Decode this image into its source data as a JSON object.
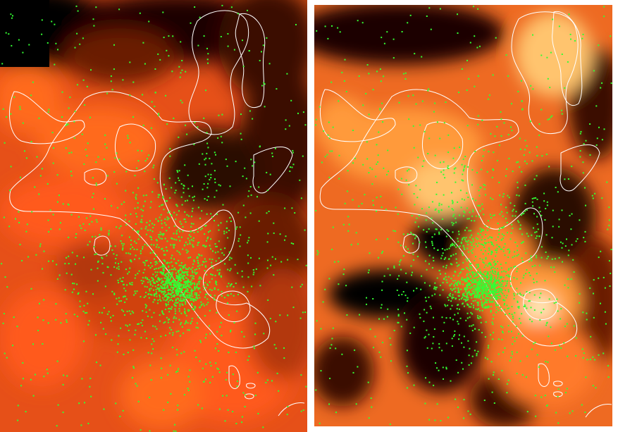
{
  "figure": {
    "panels": [
      {
        "name": "left-map",
        "background": "#e65018",
        "contour_color": "#ffffff",
        "point_color": "#33ff33",
        "colormap": [
          "#000000",
          "#2a0800",
          "#6b1a04",
          "#b3370c",
          "#e65018",
          "#ff6a1e",
          "#ff9a3a",
          "#ffc46e",
          "#ffe6b4"
        ]
      },
      {
        "name": "right-map",
        "background": "#ee6a22",
        "contour_color": "#ffffff",
        "point_color": "#33ff33",
        "colormap": [
          "#000000",
          "#2a0800",
          "#6b1a04",
          "#b3370c",
          "#e65018",
          "#ff6a1e",
          "#ff9a3a",
          "#ffc46e",
          "#ffe6b4"
        ]
      }
    ]
  }
}
